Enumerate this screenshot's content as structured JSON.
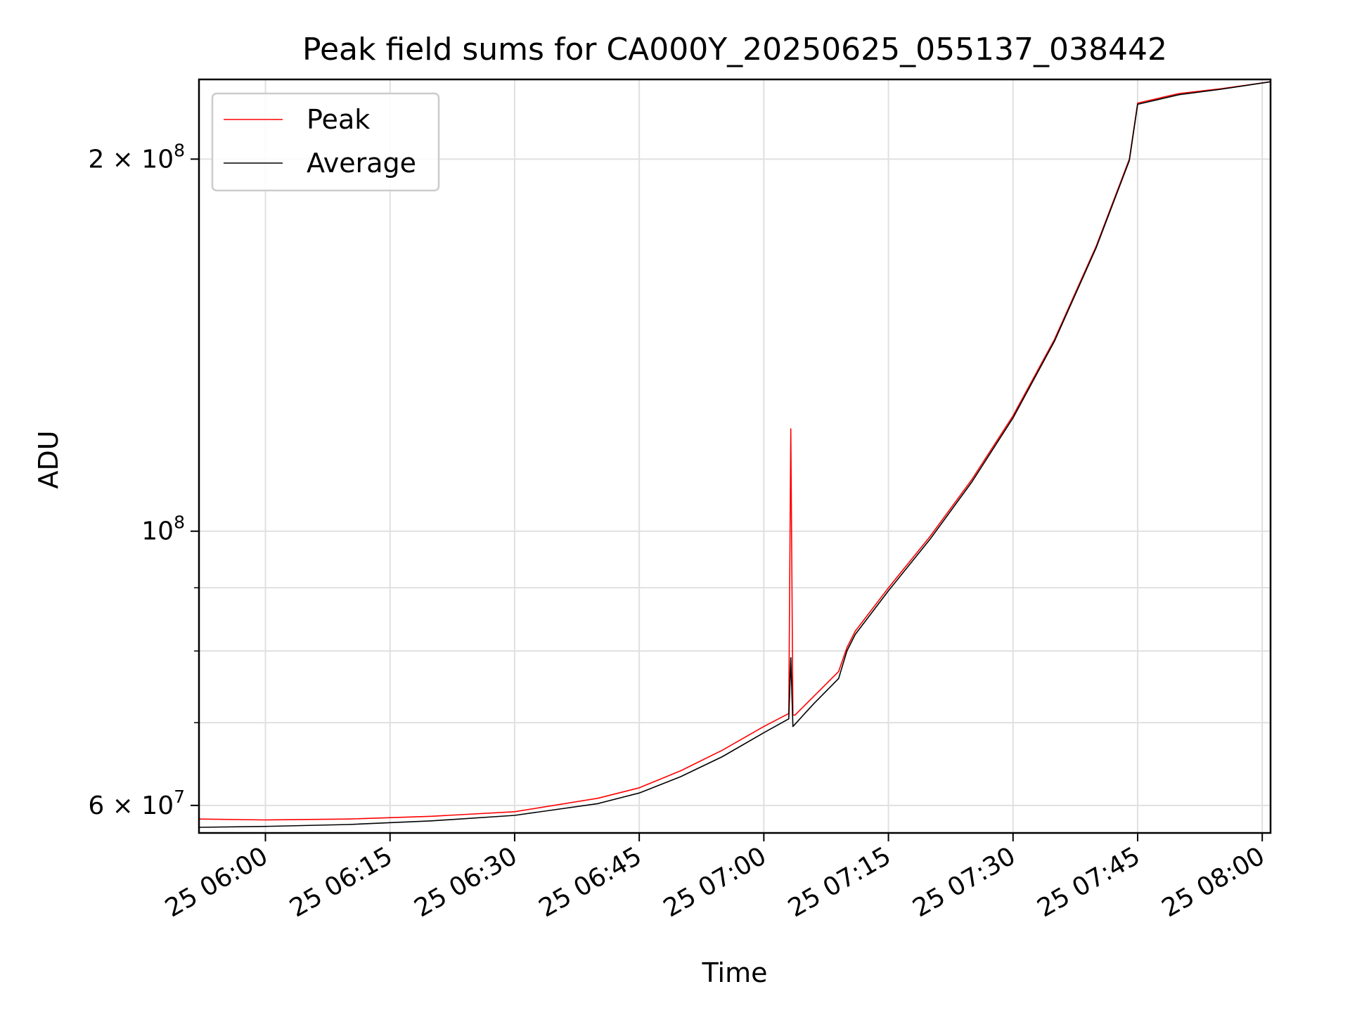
{
  "chart_data": {
    "type": "line",
    "title": "Peak field sums for CA000Y_20250625_055137_038442",
    "xlabel": "Time",
    "ylabel": "ADU",
    "yscale": "log",
    "grid": true,
    "legend_position": "top-left",
    "xlim": [
      "2025-06-25T05:52:00",
      "2025-06-25T08:01:00"
    ],
    "ylim": [
      57000000,
      232000000
    ],
    "x_ticks": [
      {
        "value": "2025-06-25T06:00:00",
        "label": "25 06:00"
      },
      {
        "value": "2025-06-25T06:15:00",
        "label": "25 06:15"
      },
      {
        "value": "2025-06-25T06:30:00",
        "label": "25 06:30"
      },
      {
        "value": "2025-06-25T06:45:00",
        "label": "25 06:45"
      },
      {
        "value": "2025-06-25T07:00:00",
        "label": "25 07:00"
      },
      {
        "value": "2025-06-25T07:15:00",
        "label": "25 07:15"
      },
      {
        "value": "2025-06-25T07:30:00",
        "label": "25 07:30"
      },
      {
        "value": "2025-06-25T07:45:00",
        "label": "25 07:45"
      },
      {
        "value": "2025-06-25T08:00:00",
        "label": "25 08:00"
      }
    ],
    "y_major_ticks": [
      {
        "value": 60000000,
        "base": "6 × 10",
        "exp": "7"
      },
      {
        "value": 100000000,
        "base": "10",
        "exp": "8"
      },
      {
        "value": 200000000,
        "base": "2 × 10",
        "exp": "8"
      }
    ],
    "y_minor_ticks": [
      70000000,
      80000000,
      90000000
    ],
    "series": [
      {
        "name": "Peak",
        "color": "#ff0000",
        "x": [
          "2025-06-25T05:52:00",
          "2025-06-25T06:00:00",
          "2025-06-25T06:10:00",
          "2025-06-25T06:20:00",
          "2025-06-25T06:30:00",
          "2025-06-25T06:40:00",
          "2025-06-25T06:45:00",
          "2025-06-25T06:50:00",
          "2025-06-25T06:55:00",
          "2025-06-25T07:00:00",
          "2025-06-25T07:03:00",
          "2025-06-25T07:03:15",
          "2025-06-25T07:03:30",
          "2025-06-25T07:03:45",
          "2025-06-25T07:06:00",
          "2025-06-25T07:09:00",
          "2025-06-25T07:10:00",
          "2025-06-25T07:11:00",
          "2025-06-25T07:15:00",
          "2025-06-25T07:20:00",
          "2025-06-25T07:25:00",
          "2025-06-25T07:30:00",
          "2025-06-25T07:35:00",
          "2025-06-25T07:40:00",
          "2025-06-25T07:44:00",
          "2025-06-25T07:45:00",
          "2025-06-25T07:50:00",
          "2025-06-25T07:55:00",
          "2025-06-25T08:01:00"
        ],
        "y": [
          58500000,
          58400000,
          58500000,
          58800000,
          59300000,
          60800000,
          62000000,
          64000000,
          66500000,
          69500000,
          71200000,
          121000000,
          71000000,
          71000000,
          73500000,
          77000000,
          80500000,
          83000000,
          90000000,
          99000000,
          110000000,
          124000000,
          143000000,
          170000000,
          200000000,
          222000000,
          226000000,
          228000000,
          231000000
        ]
      },
      {
        "name": "Average",
        "color": "#000000",
        "x": [
          "2025-06-25T05:52:00",
          "2025-06-25T06:00:00",
          "2025-06-25T06:10:00",
          "2025-06-25T06:20:00",
          "2025-06-25T06:30:00",
          "2025-06-25T06:40:00",
          "2025-06-25T06:45:00",
          "2025-06-25T06:50:00",
          "2025-06-25T06:55:00",
          "2025-06-25T07:00:00",
          "2025-06-25T07:03:00",
          "2025-06-25T07:03:15",
          "2025-06-25T07:03:30",
          "2025-06-25T07:03:45",
          "2025-06-25T07:06:00",
          "2025-06-25T07:09:00",
          "2025-06-25T07:10:00",
          "2025-06-25T07:11:00",
          "2025-06-25T07:15:00",
          "2025-06-25T07:20:00",
          "2025-06-25T07:25:00",
          "2025-06-25T07:30:00",
          "2025-06-25T07:35:00",
          "2025-06-25T07:40:00",
          "2025-06-25T07:44:00",
          "2025-06-25T07:45:00",
          "2025-06-25T07:50:00",
          "2025-06-25T07:55:00",
          "2025-06-25T08:01:00"
        ],
        "y": [
          57600000,
          57700000,
          57900000,
          58300000,
          58900000,
          60200000,
          61400000,
          63300000,
          65700000,
          68700000,
          70500000,
          79000000,
          69500000,
          69800000,
          72500000,
          76000000,
          80000000,
          82500000,
          89500000,
          98500000,
          109500000,
          123500000,
          142500000,
          169500000,
          199500000,
          221500000,
          225500000,
          227800000,
          231000000
        ]
      }
    ],
    "legend": [
      {
        "label": "Peak",
        "color": "#ff0000"
      },
      {
        "label": "Average",
        "color": "#000000"
      }
    ]
  }
}
